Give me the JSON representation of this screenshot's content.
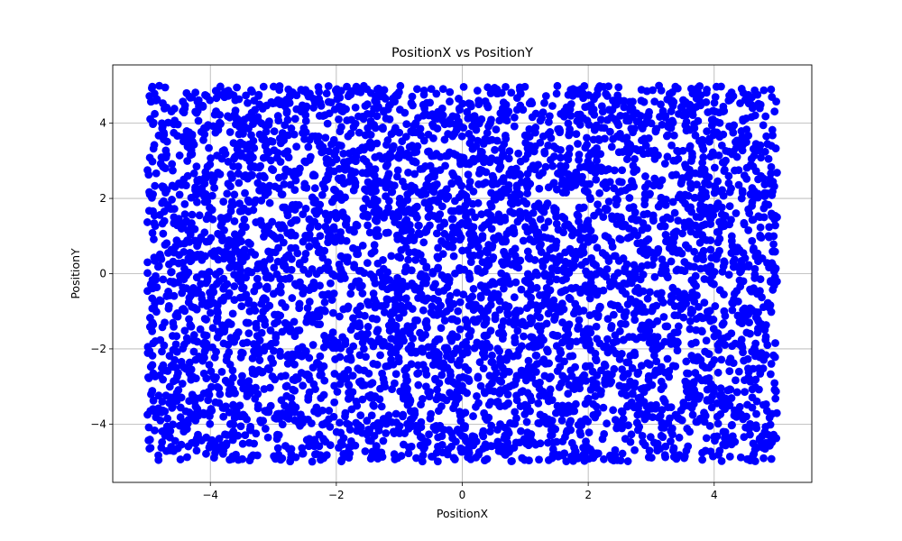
{
  "chart_data": {
    "type": "scatter",
    "title": "PositionX vs PositionY",
    "xlabel": "PositionX",
    "ylabel": "PositionY",
    "xlim": [
      -5.55,
      5.55
    ],
    "ylim": [
      -5.55,
      5.55
    ],
    "x_ticks": [
      -4,
      -2,
      0,
      2,
      4
    ],
    "y_ticks": [
      -4,
      -2,
      0,
      2,
      4
    ],
    "x_tick_labels": [
      "−4",
      "−2",
      "0",
      "2",
      "4"
    ],
    "y_tick_labels": [
      "−4",
      "−2",
      "0",
      "2",
      "4"
    ],
    "grid": true,
    "marker_color": "#0000ff",
    "point_count": 5000,
    "x_range": [
      -5,
      5
    ],
    "y_range": [
      -5,
      5
    ],
    "distribution": "uniform random over the square [-5,5] x [-5,5]"
  }
}
